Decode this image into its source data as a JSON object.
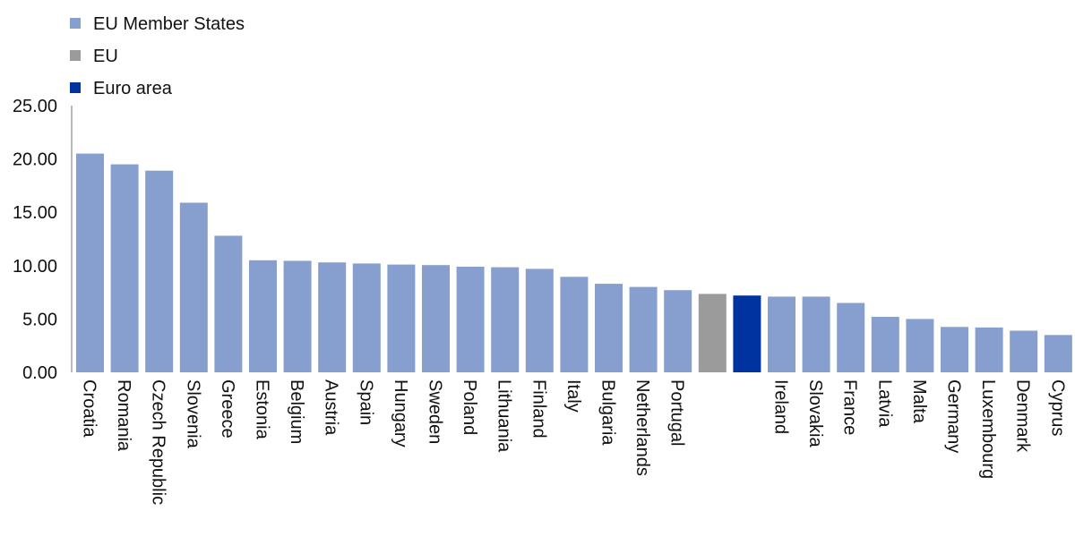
{
  "chart_data": {
    "type": "bar",
    "title": "",
    "xlabel": "",
    "ylabel": "",
    "ylim": [
      0,
      25
    ],
    "yticks": [
      "0.00",
      "5.00",
      "10.00",
      "15.00",
      "20.00",
      "25.00"
    ],
    "grid": false,
    "legend_position": "top-left",
    "legend": [
      {
        "name": "EU Member States",
        "color": "#879fce"
      },
      {
        "name": "EU",
        "color": "#9b9b9b"
      },
      {
        "name": "Euro area",
        "color": "#0033a0"
      }
    ],
    "categories": [
      "Croatia",
      "Romania",
      "Czech Republic",
      "Slovenia",
      "Greece",
      "Estonia",
      "Belgium",
      "Austria",
      "Spain",
      "Hungary",
      "Sweden",
      "Poland",
      "Lithuania",
      "Finland",
      "Italy",
      "Bulgaria",
      "Netherlands",
      "Portugal",
      "",
      "",
      "Ireland",
      "Slovakia",
      "France",
      "Latvia",
      "Malta",
      "Germany",
      "Luxembourg",
      "Denmark",
      "Cyprus"
    ],
    "values": [
      20.5,
      19.5,
      18.9,
      15.9,
      12.8,
      10.5,
      10.45,
      10.3,
      10.2,
      10.1,
      10.05,
      9.9,
      9.85,
      9.7,
      8.95,
      8.3,
      8.0,
      7.7,
      7.35,
      7.2,
      7.1,
      7.1,
      6.5,
      5.2,
      5.0,
      4.25,
      4.2,
      3.9,
      3.5
    ],
    "bar_groups": [
      "EU Member States",
      "EU Member States",
      "EU Member States",
      "EU Member States",
      "EU Member States",
      "EU Member States",
      "EU Member States",
      "EU Member States",
      "EU Member States",
      "EU Member States",
      "EU Member States",
      "EU Member States",
      "EU Member States",
      "EU Member States",
      "EU Member States",
      "EU Member States",
      "EU Member States",
      "EU Member States",
      "EU",
      "Euro area",
      "EU Member States",
      "EU Member States",
      "EU Member States",
      "EU Member States",
      "EU Member States",
      "EU Member States",
      "EU Member States",
      "EU Member States",
      "EU Member States"
    ]
  }
}
